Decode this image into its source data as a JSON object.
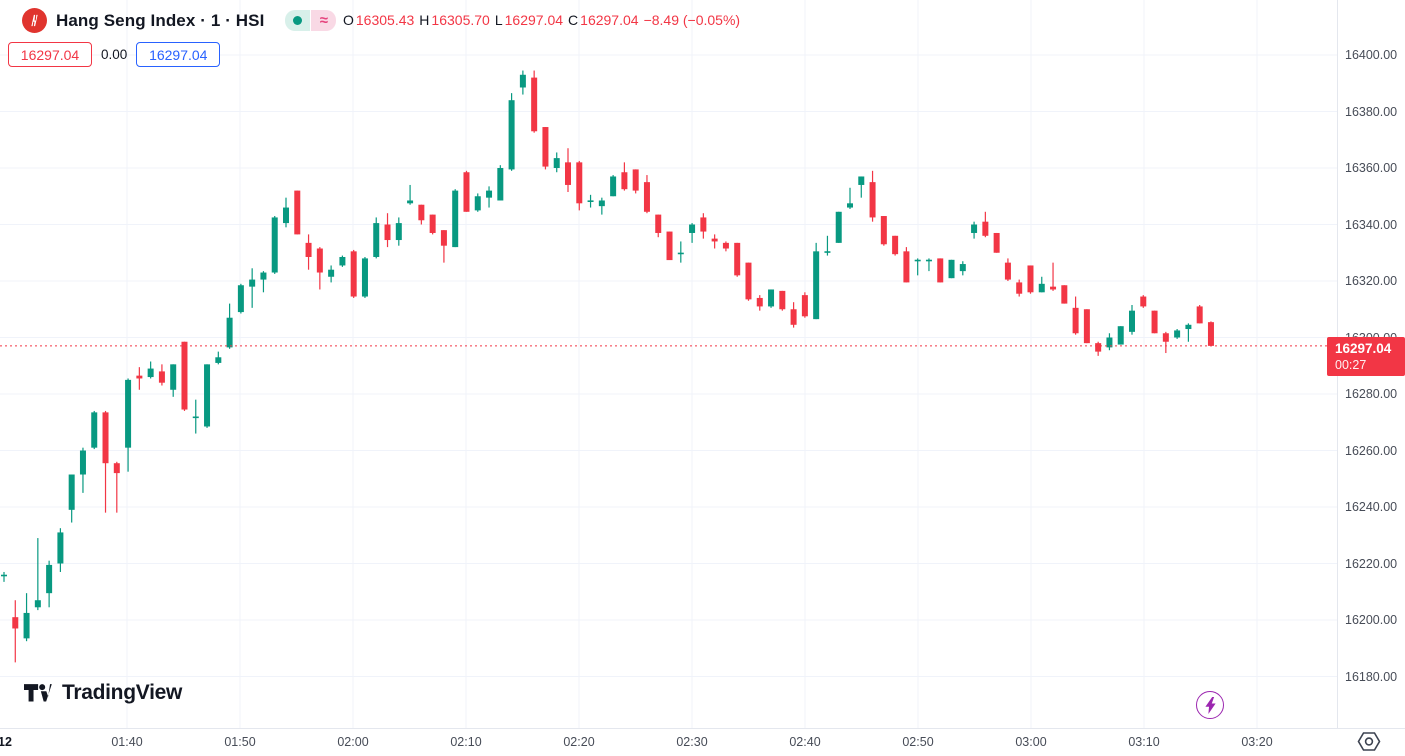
{
  "header": {
    "symbol_title": "Hang Seng Index · 1 · HSI",
    "market_status_pill": "open-dot",
    "approx_symbol": "≈",
    "ohlc": {
      "o_label": "O",
      "o": "16305.43",
      "h_label": "H",
      "h": "16305.70",
      "l_label": "L",
      "l": "16297.04",
      "c_label": "C",
      "c": "16297.04",
      "change": "−8.49 (−0.05%)"
    },
    "badges": {
      "bid": "16297.04",
      "spread": "0.00",
      "ask": "16297.04"
    }
  },
  "price_axis": {
    "ticks": [
      "16400.00",
      "16380.00",
      "16360.00",
      "16340.00",
      "16320.00",
      "16300.00",
      "16280.00",
      "16260.00",
      "16240.00",
      "16220.00",
      "16200.00",
      "16180.00"
    ],
    "current_price": "16297.04",
    "countdown": "00:27"
  },
  "time_axis": {
    "date_label": "12",
    "ticks": [
      "01:40",
      "01:50",
      "02:00",
      "02:10",
      "02:20",
      "02:30",
      "02:40",
      "02:50",
      "03:00",
      "03:10",
      "03:20"
    ]
  },
  "footer": {
    "logo_text": "TradingView"
  },
  "colors": {
    "up": "#089981",
    "down": "#f23645",
    "accent_blue": "#2962ff",
    "logo_red": "#e0342e",
    "flash_purple": "#9c27b0",
    "grid": "#f0f3fa",
    "axis_text": "#474c57",
    "title_text": "#131722",
    "approx_pink": "#e5447d"
  },
  "chart_data": {
    "type": "candlestick",
    "title": "Hang Seng Index",
    "symbol": "HSI",
    "interval": "1 minute",
    "time_range": {
      "start": "01:29",
      "end": "03:16",
      "interval_minutes": 1
    },
    "ylim": [
      16170,
      16405
    ],
    "price_tick_step": 20,
    "grid": true,
    "session_ohlc": {
      "open": 16305.43,
      "high": 16305.7,
      "low": 16297.04,
      "close": 16297.04,
      "change": -8.49,
      "change_pct": -0.05
    },
    "current_price": 16297.04,
    "candles": [
      [
        16215.5,
        16217,
        16213.5,
        16216
      ],
      [
        16201,
        16207,
        16185,
        16197
      ],
      [
        16193.5,
        16209.5,
        16192.5,
        16202.5
      ],
      [
        16204.5,
        16229,
        16203.5,
        16207
      ],
      [
        16209.5,
        16221,
        16204.5,
        16219.5
      ],
      [
        16220,
        16232.5,
        16217,
        16231
      ],
      [
        16239,
        16251.5,
        16234.5,
        16251.5
      ],
      [
        16251.5,
        16261,
        16245,
        16260
      ],
      [
        16261,
        16274,
        16260.5,
        16273.5
      ],
      [
        16273.5,
        16274,
        16238,
        16255.5
      ],
      [
        16255.5,
        16256,
        16238,
        16252
      ],
      [
        16261,
        16285.5,
        16252.5,
        16285
      ],
      [
        16286.5,
        16289.5,
        16281.5,
        16285.5
      ],
      [
        16286,
        16291.5,
        16285.5,
        16289
      ],
      [
        16288,
        16290.5,
        16283,
        16284
      ],
      [
        16281.5,
        16290.5,
        16279,
        16290.5
      ],
      [
        16298.5,
        16298.5,
        16274,
        16274.5
      ],
      [
        16271.5,
        16278,
        16266,
        16272
      ],
      [
        16268.5,
        16290.5,
        16268,
        16290.5
      ],
      [
        16291,
        16295,
        16290.5,
        16293
      ],
      [
        16296.5,
        16312,
        16296,
        16307
      ],
      [
        16309,
        16319,
        16308.5,
        16318.5
      ],
      [
        16318,
        16324.5,
        16310.5,
        16320.5
      ],
      [
        16320.5,
        16323.5,
        16316,
        16323
      ],
      [
        16323,
        16343,
        16322.5,
        16342.5
      ],
      [
        16340.5,
        16349.5,
        16339,
        16346
      ],
      [
        16352,
        16352,
        16336.5,
        16336.5
      ],
      [
        16333.5,
        16336.5,
        16324,
        16328.5
      ],
      [
        16331.5,
        16332,
        16317,
        16323
      ],
      [
        16321.5,
        16325.5,
        16319.5,
        16324
      ],
      [
        16325.5,
        16329,
        16325,
        16328.5
      ],
      [
        16330.5,
        16331,
        16314,
        16314.5
      ],
      [
        16314.5,
        16328.5,
        16314,
        16328
      ],
      [
        16328.5,
        16342.5,
        16328,
        16340.5
      ],
      [
        16340,
        16344,
        16332,
        16334.5
      ],
      [
        16334.5,
        16342.5,
        16332.5,
        16340.5
      ],
      [
        16347.5,
        16354,
        16347,
        16348.5
      ],
      [
        16347,
        16347,
        16340,
        16341.5
      ],
      [
        16343.5,
        16343.5,
        16336.5,
        16337
      ],
      [
        16338,
        16338,
        16326.5,
        16332.5
      ],
      [
        16332,
        16352.5,
        16332,
        16352
      ],
      [
        16358.5,
        16359,
        16344.5,
        16344.5
      ],
      [
        16345,
        16351,
        16344.5,
        16350
      ],
      [
        16349.5,
        16353.5,
        16346,
        16352
      ],
      [
        16348.5,
        16361,
        16348.5,
        16360
      ],
      [
        16359.5,
        16386.5,
        16359,
        16384
      ],
      [
        16388.5,
        16394.5,
        16386,
        16393
      ],
      [
        16392,
        16394.5,
        16372.5,
        16373
      ],
      [
        16374.5,
        16374.5,
        16359.5,
        16360.5
      ],
      [
        16360,
        16365.5,
        16358.5,
        16363.5
      ],
      [
        16362,
        16367,
        16351.5,
        16354
      ],
      [
        16362,
        16362.5,
        16345,
        16347.5
      ],
      [
        16348,
        16350.5,
        16346,
        16348.5
      ],
      [
        16346.5,
        16349.5,
        16343.5,
        16348.5
      ],
      [
        16350,
        16357.5,
        16350,
        16357
      ],
      [
        16358.5,
        16362,
        16352,
        16352.5
      ],
      [
        16359.5,
        16359.5,
        16351,
        16352
      ],
      [
        16355,
        16357.5,
        16344,
        16344.5
      ],
      [
        16343.5,
        16343.5,
        16335.5,
        16337
      ],
      [
        16337.5,
        16337.5,
        16327.5,
        16327.4
      ],
      [
        16329.5,
        16334,
        16326.5,
        16330
      ],
      [
        16337,
        16340.5,
        16333.5,
        16340
      ],
      [
        16342.5,
        16344,
        16335,
        16337.5
      ],
      [
        16335,
        16336.5,
        16331.5,
        16334
      ],
      [
        16333.5,
        16334,
        16330.5,
        16331.5
      ],
      [
        16333.5,
        16333.5,
        16321.5,
        16322
      ],
      [
        16326.5,
        16326.5,
        16313,
        16313.5
      ],
      [
        16314,
        16315,
        16309.5,
        16311
      ],
      [
        16311,
        16317,
        16310.5,
        16317
      ],
      [
        16316.5,
        16316.5,
        16309.5,
        16310
      ],
      [
        16310,
        16312.5,
        16303.5,
        16304.5
      ],
      [
        16315,
        16316,
        16307,
        16307.5
      ],
      [
        16306.5,
        16333.5,
        16306.5,
        16330.5
      ],
      [
        16330,
        16336,
        16329,
        16330.5
      ],
      [
        16333.5,
        16344.5,
        16333.5,
        16344.5
      ],
      [
        16346,
        16353,
        16345.5,
        16347.5
      ],
      [
        16354,
        16357,
        16349.5,
        16357
      ],
      [
        16355,
        16359,
        16341,
        16342.5
      ],
      [
        16343,
        16343,
        16332.5,
        16333
      ],
      [
        16336,
        16336,
        16329,
        16329.5
      ],
      [
        16330.5,
        16332,
        16319.5,
        16319.5
      ],
      [
        16327,
        16328,
        16322,
        16327.5
      ],
      [
        16327,
        16328,
        16323.5,
        16327.5
      ],
      [
        16328,
        16328,
        16319.5,
        16319.5
      ],
      [
        16321,
        16327.5,
        16321,
        16327.5
      ],
      [
        16323.5,
        16327,
        16322,
        16326
      ],
      [
        16337,
        16341,
        16335,
        16340
      ],
      [
        16341,
        16344.5,
        16335.5,
        16336
      ],
      [
        16337,
        16337,
        16330,
        16330
      ],
      [
        16326.5,
        16328,
        16320,
        16320.5
      ],
      [
        16319.5,
        16320.5,
        16314.5,
        16315.5
      ],
      [
        16325.5,
        16325.5,
        16315.5,
        16316
      ],
      [
        16316,
        16321.5,
        16316,
        16319
      ],
      [
        16318,
        16326.5,
        16316.5,
        16317
      ],
      [
        16318.5,
        16318.5,
        16312,
        16312
      ],
      [
        16310.5,
        16314.5,
        16301,
        16301.5
      ],
      [
        16310,
        16310,
        16298,
        16298
      ],
      [
        16298,
        16298.5,
        16293.5,
        16295
      ],
      [
        16296.5,
        16301.5,
        16295.5,
        16300
      ],
      [
        16297.5,
        16304,
        16297.5,
        16304
      ],
      [
        16302,
        16311.5,
        16301,
        16309.5
      ],
      [
        16314.5,
        16315,
        16310.5,
        16311
      ],
      [
        16309.5,
        16309.5,
        16301.5,
        16301.5
      ],
      [
        16301.5,
        16302,
        16294.5,
        16298.5
      ],
      [
        16300,
        16303,
        16299.5,
        16302.5
      ],
      [
        16303,
        16305,
        16298.5,
        16304.5
      ],
      [
        16311,
        16311.5,
        16305,
        16305
      ],
      [
        16305.43,
        16305.7,
        16297.04,
        16297.04
      ]
    ]
  }
}
